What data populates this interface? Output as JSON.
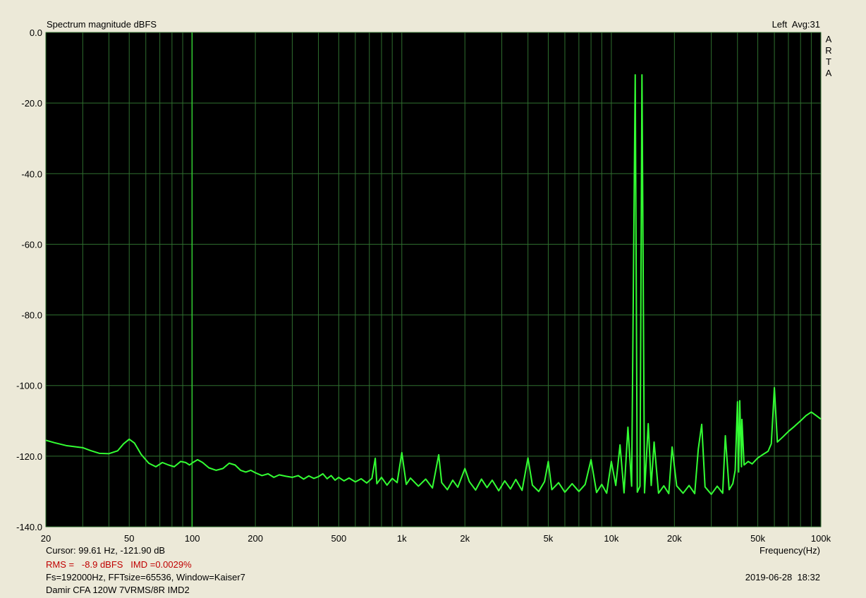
{
  "chart_data": {
    "type": "line",
    "title": "Spectrum magnitude dBFS",
    "top_right": "Left  Avg:31",
    "side_label": [
      "A",
      "R",
      "T",
      "A"
    ],
    "xlabel": "Frequency(Hz)",
    "log_x": true,
    "grid": true,
    "color": "#33ff33",
    "xlim": [
      20,
      100000
    ],
    "xticks": [
      20,
      50,
      100,
      200,
      500,
      {
        "value": 1000,
        "label": "1k"
      },
      {
        "value": 2000,
        "label": "2k"
      },
      {
        "value": 5000,
        "label": "5k"
      },
      {
        "value": 10000,
        "label": "10k"
      },
      {
        "value": 20000,
        "label": "20k"
      },
      {
        "value": 50000,
        "label": "50k"
      },
      {
        "value": 100000,
        "label": "100k"
      }
    ],
    "x_minor_ticks": [
      30,
      40,
      60,
      70,
      80,
      90,
      300,
      400,
      600,
      700,
      800,
      900,
      3000,
      4000,
      6000,
      7000,
      8000,
      9000,
      30000,
      40000,
      60000,
      70000,
      80000,
      90000
    ],
    "ylim": [
      -140,
      0
    ],
    "yticks": [
      {
        "value": -140,
        "label": "-140.0"
      },
      {
        "value": -120,
        "label": "-120.0"
      },
      {
        "value": -100,
        "label": "-100.0"
      },
      {
        "value": -80,
        "label": "-80.0"
      },
      {
        "value": -60,
        "label": "-60.0"
      },
      {
        "value": -40,
        "label": "-40.0"
      },
      {
        "value": -20,
        "label": "-20.0"
      },
      {
        "value": 0,
        "label": "0.0"
      }
    ],
    "cursor_x": 99.61,
    "cursor_text": "Cursor: 99.61 Hz, -121.90 dB",
    "rms_text": "RMS =   -8.9 dBFS   IMD =0.0029%",
    "settings_text": "Fs=192000Hz, FFTsize=65536, Window=Kaiser7",
    "description": "Damir CFA 120W 7VRMS/8R IMD2",
    "timestamp": "2019-06-28  18:32",
    "x": [
      20,
      22,
      25,
      30,
      33,
      36,
      40,
      44,
      47,
      50,
      53,
      57,
      62,
      67,
      72,
      77,
      82,
      88,
      93,
      97,
      100,
      106,
      112,
      120,
      130,
      140,
      150,
      160,
      170,
      180,
      190,
      200,
      215,
      230,
      245,
      260,
      280,
      300,
      320,
      340,
      360,
      380,
      400,
      420,
      440,
      460,
      480,
      500,
      530,
      560,
      600,
      640,
      680,
      720,
      747,
      760,
      800,
      850,
      900,
      950,
      1000,
      1050,
      1100,
      1200,
      1300,
      1400,
      1500,
      1550,
      1650,
      1750,
      1850,
      2000,
      2100,
      2250,
      2400,
      2550,
      2700,
      2900,
      3100,
      3300,
      3500,
      3750,
      4000,
      4200,
      4500,
      4800,
      5000,
      5200,
      5600,
      6000,
      6500,
      7000,
      7500,
      8000,
      8500,
      9000,
      9500,
      10000,
      10500,
      11000,
      11500,
      12000,
      12500,
      13000,
      13300,
      13700,
      14000,
      14400,
      15000,
      15500,
      16000,
      16800,
      17800,
      18800,
      19500,
      20500,
      22000,
      23500,
      25000,
      26000,
      27000,
      28000,
      30000,
      32000,
      34000,
      35000,
      36500,
      38000,
      39000,
      40000,
      40500,
      41000,
      41800,
      42000,
      43000,
      45000,
      47000,
      50000,
      53000,
      56000,
      58000,
      60000,
      62000,
      66000,
      70000,
      75000,
      80000,
      85000,
      90000,
      95000,
      100000
    ],
    "values": [
      -115.5,
      -116.2,
      -117,
      -117.6,
      -118.5,
      -119.2,
      -119.3,
      -118.5,
      -116.5,
      -115.2,
      -116.3,
      -119.5,
      -122,
      -123,
      -121.8,
      -122.5,
      -123,
      -121.5,
      -121.8,
      -122.5,
      -121.9,
      -121,
      -121.8,
      -123.3,
      -124,
      -123.5,
      -122,
      -122.5,
      -124,
      -124.5,
      -124,
      -124.7,
      -125.5,
      -125,
      -126,
      -125.3,
      -125.7,
      -126,
      -125.5,
      -126.5,
      -125.6,
      -126.3,
      -125.8,
      -125,
      -126.4,
      -125.5,
      -126.8,
      -126,
      -127,
      -126.2,
      -127.3,
      -126.4,
      -127.6,
      -126.3,
      -120.6,
      -127.8,
      -126,
      -128.2,
      -126.3,
      -127.5,
      -119,
      -128,
      -126.2,
      -128.5,
      -126.5,
      -129,
      -119.6,
      -127.5,
      -129.5,
      -126.8,
      -128.8,
      -123.5,
      -127.2,
      -129.6,
      -126.5,
      -128.9,
      -126.8,
      -129.8,
      -127,
      -129.3,
      -126.6,
      -129.7,
      -120.5,
      -128.2,
      -130,
      -127.2,
      -121.5,
      -129.5,
      -127.5,
      -130.2,
      -127.8,
      -130,
      -128,
      -121,
      -130.3,
      -128,
      -130.5,
      -121.5,
      -128.3,
      -116.8,
      -130.4,
      -111.8,
      -128.5,
      -12,
      -130.2,
      -128.5,
      -12,
      -130.4,
      -110.8,
      -128.3,
      -116,
      -130.5,
      -128.4,
      -130.6,
      -117.4,
      -128.4,
      -130.5,
      -128.3,
      -130.6,
      -118,
      -111,
      -128.7,
      -130.8,
      -128.5,
      -130.5,
      -114.2,
      -129.5,
      -127.8,
      -124,
      -104.6,
      -124.5,
      -104.3,
      -123,
      -109.6,
      -122.5,
      -121.5,
      -122.2,
      -120.5,
      -119.5,
      -118.6,
      -116.5,
      -100.6,
      -116,
      -114.5,
      -113,
      -111.5,
      -110,
      -108.5,
      -107.5,
      -108.5,
      -109.5
    ]
  }
}
